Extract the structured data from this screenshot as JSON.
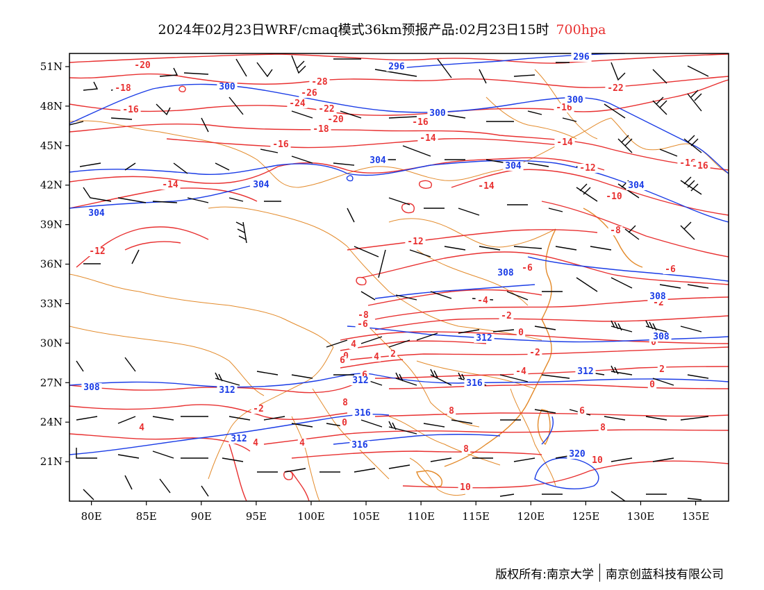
{
  "title": {
    "main": "2024年02月23日WRF/cmaq模式36km预报产品:02月23日15时",
    "level": "700hpa"
  },
  "colors": {
    "temperature": "#e83030",
    "height": "#1a3ce6",
    "border": "#e38a2a",
    "wind": "#000000"
  },
  "map": {
    "lon_range": [
      78,
      138
    ],
    "lat_range": [
      18,
      52
    ],
    "lon_ticks": [
      "80E",
      "85E",
      "90E",
      "95E",
      "100E",
      "105E",
      "110E",
      "115E",
      "120E",
      "125E",
      "130E",
      "135E"
    ],
    "lat_ticks": [
      "51N",
      "48N",
      "45N",
      "42N",
      "39N",
      "36N",
      "33N",
      "30N",
      "27N",
      "24N",
      "21N"
    ]
  },
  "temp_labels": [
    "-20",
    "-18",
    "-16",
    "-28",
    "-26",
    "-24",
    "-22",
    "-20",
    "-18",
    "-16",
    "-16",
    "-14",
    "-16",
    "-22",
    "-16",
    "-14",
    "-12",
    "-14",
    "-14",
    "-10",
    "-16",
    "-12",
    "-12",
    "-8",
    "-6",
    "-6",
    "-4",
    "-2",
    "-8",
    "-6",
    "4",
    "0",
    "4",
    "2",
    "0",
    "-2",
    "0",
    "-2",
    "2",
    "-4",
    "0",
    "0",
    "-2",
    "4",
    "4",
    "4",
    "6",
    "8",
    "8",
    "6",
    "8",
    "8",
    "10",
    "10",
    "6"
  ],
  "height_labels": [
    "296",
    "296",
    "300",
    "300",
    "300",
    "304",
    "304",
    "304",
    "304",
    "304",
    "308",
    "308",
    "308",
    "312",
    "312",
    "312",
    "308",
    "312",
    "316",
    "316",
    "312",
    "316",
    "320"
  ],
  "footer": {
    "copyright": "版权所有:南京大学",
    "company": "南京创蓝科技有限公司"
  }
}
